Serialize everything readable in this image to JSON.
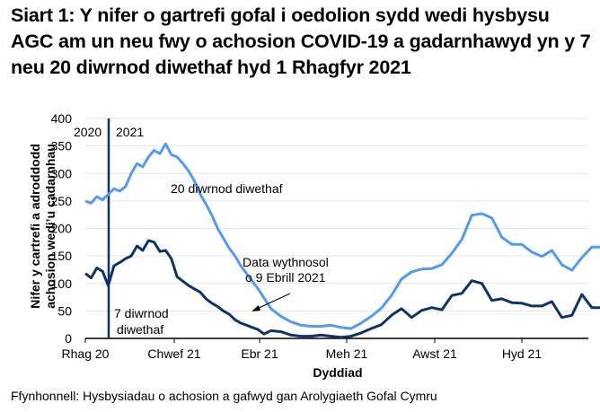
{
  "title": "Siart 1: Y nifer o gartrefi gofal i oedolion sydd wedi hysbysu AGC am un neu fwy o achosion COVID-19 a gadarnhawyd yn y 7 neu 20 diwrnod diwethaf hyd 1 Rhagfyr 2021",
  "ylabel_line1": "Nifer y cartrefi a adroddodd",
  "ylabel_line2": "achosion wedi’u cadarnhau",
  "xlabel": "Dyddiad",
  "source": "Ffynhonnell: Hysbysiadau o achosion a gafwyd gan Arolygiaeth Gofal Cymru",
  "colors": {
    "series_20": "#5599f0",
    "series_7": "#0e3368",
    "grid": "#e6e6e6",
    "axis": "#000000",
    "year_line": "#0e3368"
  },
  "chart_data": {
    "type": "line",
    "title": "Siart 1: Y nifer o gartrefi gofal i oedolion sydd wedi hysbysu AGC am un neu fwy o achosion COVID-19 a gadarnhawyd yn y 7 neu 20 diwrnod diwethaf hyd 1 Rhagfyr 2021",
    "xlabel": "Dyddiad",
    "ylabel": "Nifer y cartrefi a adroddodd achosion wedi’u cadarnhau",
    "ylim": [
      0,
      400
    ],
    "yticks": [
      0,
      50,
      100,
      150,
      200,
      250,
      300,
      350,
      400
    ],
    "xtick_labels": [
      "Rhag 20",
      "Chwef 21",
      "Ebr 21",
      "Meh 21",
      "Awst 21",
      "Hyd 21"
    ],
    "grid": true,
    "year_markers": [
      "2020",
      "2021"
    ],
    "annotations": [
      "20 diwrnod diwethaf",
      "7 diwrnod diwethaf",
      "Data wythnosol o 9 Ebrill 2021"
    ],
    "series": [
      {
        "name": "20 diwrnod diwethaf",
        "x": [
          "2020-12-01",
          "2020-12-05",
          "2020-12-09",
          "2020-12-13",
          "2020-12-17",
          "2020-12-21",
          "2020-12-25",
          "2020-12-29",
          "2021-01-02",
          "2021-01-06",
          "2021-01-10",
          "2021-01-14",
          "2021-01-18",
          "2021-01-22",
          "2021-01-26",
          "2021-01-30",
          "2021-02-03",
          "2021-02-07",
          "2021-02-11",
          "2021-02-15",
          "2021-02-19",
          "2021-02-23",
          "2021-02-27",
          "2021-03-03",
          "2021-03-07",
          "2021-03-11",
          "2021-03-15",
          "2021-03-19",
          "2021-03-23",
          "2021-03-27",
          "2021-03-31",
          "2021-04-04",
          "2021-04-09",
          "2021-04-16",
          "2021-04-23",
          "2021-04-30",
          "2021-05-07",
          "2021-05-14",
          "2021-05-21",
          "2021-05-28",
          "2021-06-04",
          "2021-06-11",
          "2021-06-18",
          "2021-06-25",
          "2021-07-02",
          "2021-07-09",
          "2021-07-16",
          "2021-07-23",
          "2021-07-30",
          "2021-08-06",
          "2021-08-13",
          "2021-08-20",
          "2021-08-27",
          "2021-09-03",
          "2021-09-10",
          "2021-09-17",
          "2021-09-24",
          "2021-10-01",
          "2021-10-08",
          "2021-10-15",
          "2021-10-22",
          "2021-10-29",
          "2021-11-05",
          "2021-11-12",
          "2021-11-19",
          "2021-11-26"
        ],
        "values": [
          250,
          246,
          258,
          252,
          262,
          272,
          268,
          276,
          300,
          318,
          312,
          330,
          342,
          336,
          354,
          334,
          330,
          318,
          304,
          286,
          262,
          244,
          224,
          200,
          182,
          164,
          150,
          132,
          118,
          104,
          90,
          74,
          54,
          40,
          30,
          24,
          22,
          22,
          24,
          20,
          18,
          28,
          40,
          55,
          78,
          108,
          121,
          126,
          127,
          134,
          155,
          180,
          224,
          227,
          219,
          184,
          171,
          171,
          157,
          149,
          160,
          134,
          124,
          147,
          166,
          166
        ]
      },
      {
        "name": "7 diwrnod diwethaf",
        "x": [
          "2020-12-01",
          "2020-12-05",
          "2020-12-09",
          "2020-12-13",
          "2020-12-17",
          "2020-12-21",
          "2020-12-25",
          "2020-12-29",
          "2021-01-02",
          "2021-01-06",
          "2021-01-10",
          "2021-01-14",
          "2021-01-18",
          "2021-01-22",
          "2021-01-26",
          "2021-01-30",
          "2021-02-03",
          "2021-02-07",
          "2021-02-11",
          "2021-02-15",
          "2021-02-19",
          "2021-02-23",
          "2021-02-27",
          "2021-03-03",
          "2021-03-07",
          "2021-03-11",
          "2021-03-15",
          "2021-03-19",
          "2021-03-23",
          "2021-03-27",
          "2021-03-31",
          "2021-04-04",
          "2021-04-09",
          "2021-04-16",
          "2021-04-23",
          "2021-04-30",
          "2021-05-07",
          "2021-05-14",
          "2021-05-21",
          "2021-05-28",
          "2021-06-04",
          "2021-06-11",
          "2021-06-18",
          "2021-06-25",
          "2021-07-02",
          "2021-07-09",
          "2021-07-16",
          "2021-07-23",
          "2021-07-30",
          "2021-08-06",
          "2021-08-13",
          "2021-08-20",
          "2021-08-27",
          "2021-09-03",
          "2021-09-10",
          "2021-09-17",
          "2021-09-24",
          "2021-10-01",
          "2021-10-08",
          "2021-10-15",
          "2021-10-22",
          "2021-10-29",
          "2021-11-05",
          "2021-11-12",
          "2021-11-19",
          "2021-11-26"
        ],
        "values": [
          118,
          110,
          128,
          122,
          96,
          132,
          138,
          145,
          150,
          168,
          160,
          178,
          175,
          158,
          160,
          145,
          112,
          104,
          96,
          90,
          84,
          72,
          64,
          58,
          50,
          44,
          34,
          28,
          24,
          20,
          16,
          8,
          14,
          12,
          6,
          4,
          4,
          6,
          4,
          2,
          4,
          10,
          18,
          25,
          42,
          54,
          38,
          51,
          56,
          52,
          78,
          82,
          105,
          100,
          69,
          72,
          65,
          64,
          59,
          59,
          67,
          38,
          42,
          80,
          56,
          56
        ]
      }
    ]
  }
}
